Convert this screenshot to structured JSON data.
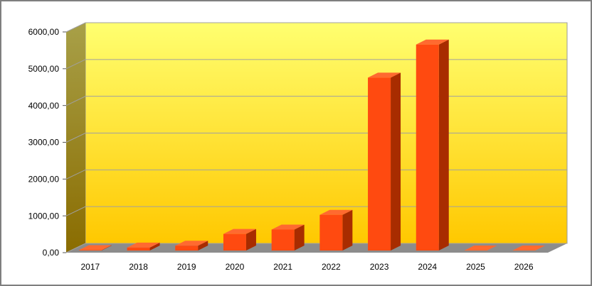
{
  "chart_data": {
    "type": "bar",
    "categories": [
      "2017",
      "2018",
      "2019",
      "2020",
      "2021",
      "2022",
      "2023",
      "2024",
      "2025",
      "2026"
    ],
    "values": [
      10,
      80,
      130,
      450,
      570,
      970,
      4700,
      5600,
      0,
      0
    ],
    "color": "#ff4a10",
    "ylim": [
      0,
      6000
    ],
    "yticks": [
      {
        "value": 0,
        "label": "0,00"
      },
      {
        "value": 1000,
        "label": "1000,00"
      },
      {
        "value": 2000,
        "label": "2000,00"
      },
      {
        "value": 3000,
        "label": "3000,00"
      },
      {
        "value": 4000,
        "label": "4000,00"
      },
      {
        "value": 5000,
        "label": "5000,00"
      },
      {
        "value": 6000,
        "label": "6000,00"
      }
    ],
    "grid": true
  }
}
